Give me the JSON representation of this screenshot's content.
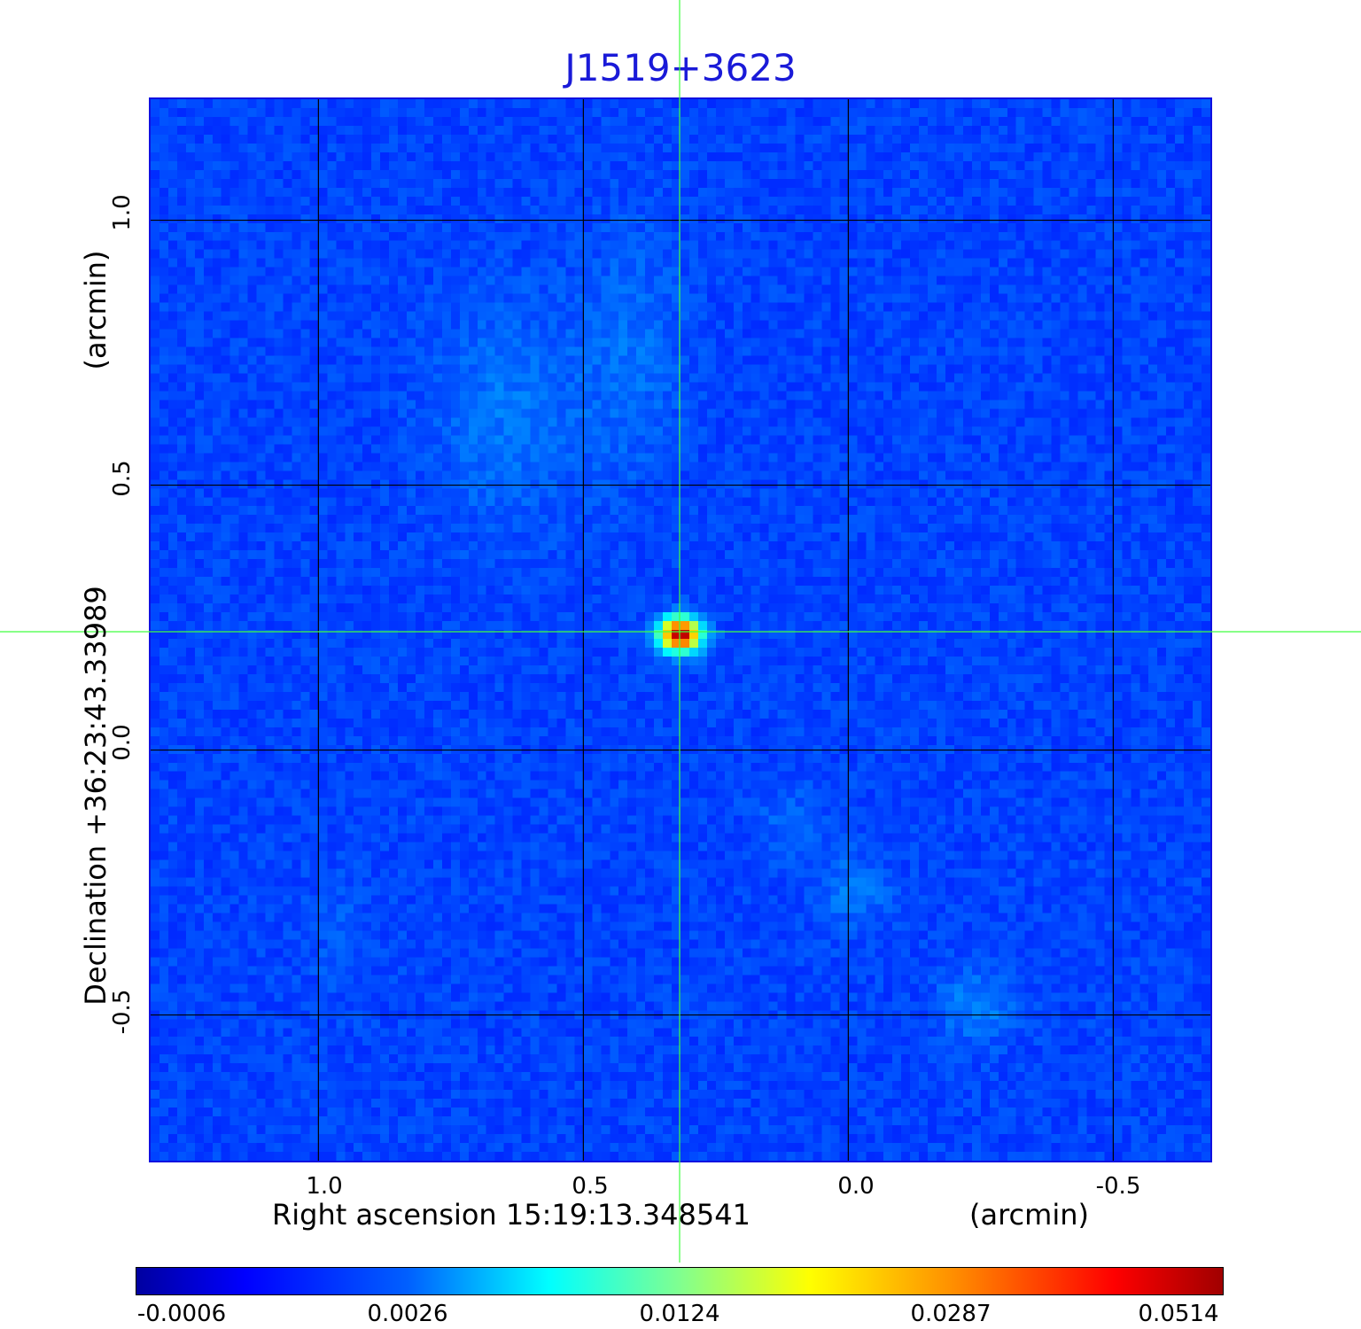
{
  "title": "J1519+3623",
  "image": {
    "colormap": "jet",
    "source_label": "J1519+3623"
  },
  "x_axis": {
    "label": "Right ascension  15:19:13.348541",
    "unit": "(arcmin)",
    "ticks": [
      "1.0",
      "0.5",
      "0.0",
      "-0.5"
    ]
  },
  "y_axis": {
    "label": "Declination  +36:23:43.33989",
    "unit": "(arcmin)",
    "ticks": [
      "1.0",
      "0.5",
      "0.0",
      "-0.5"
    ]
  },
  "colorbar": {
    "ticks": [
      "-0.0006",
      "0.0026",
      "0.0124",
      "0.0287",
      "0.0514"
    ]
  },
  "colors": {
    "title": "#1a1ad8",
    "crosshair": "#40ff40",
    "grid": "#000000"
  }
}
